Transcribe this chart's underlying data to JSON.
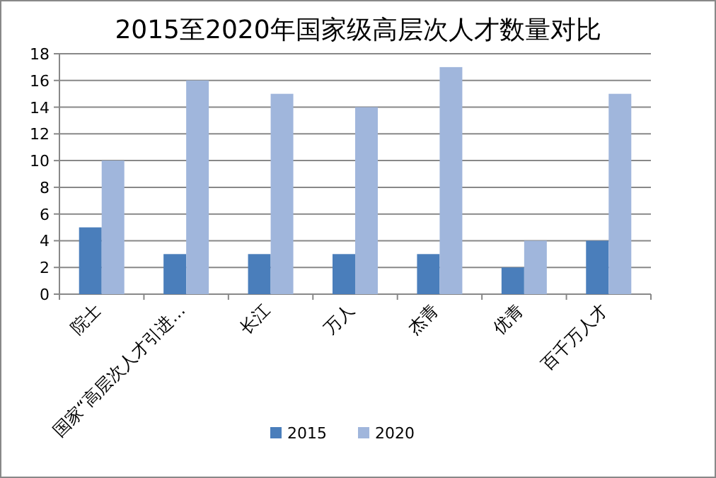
{
  "chart_data": {
    "type": "bar",
    "title": "2015至2020年国家级高层次人才数量对比",
    "categories": [
      "院士",
      "国家“高层次人才引进…",
      "长江",
      "万人",
      "杰青",
      "优青",
      "百千万人才"
    ],
    "series": [
      {
        "name": "2015",
        "color": "#4a7ebb",
        "values": [
          5,
          3,
          3,
          3,
          3,
          2,
          4
        ]
      },
      {
        "name": "2020",
        "color": "#a0b6dc",
        "values": [
          10,
          16,
          15,
          14,
          17,
          4,
          15
        ]
      }
    ],
    "ylim": [
      0,
      18
    ],
    "yticks": [
      0,
      2,
      4,
      6,
      8,
      10,
      12,
      14,
      16,
      18
    ],
    "grid": "y",
    "legend": "bottom"
  }
}
